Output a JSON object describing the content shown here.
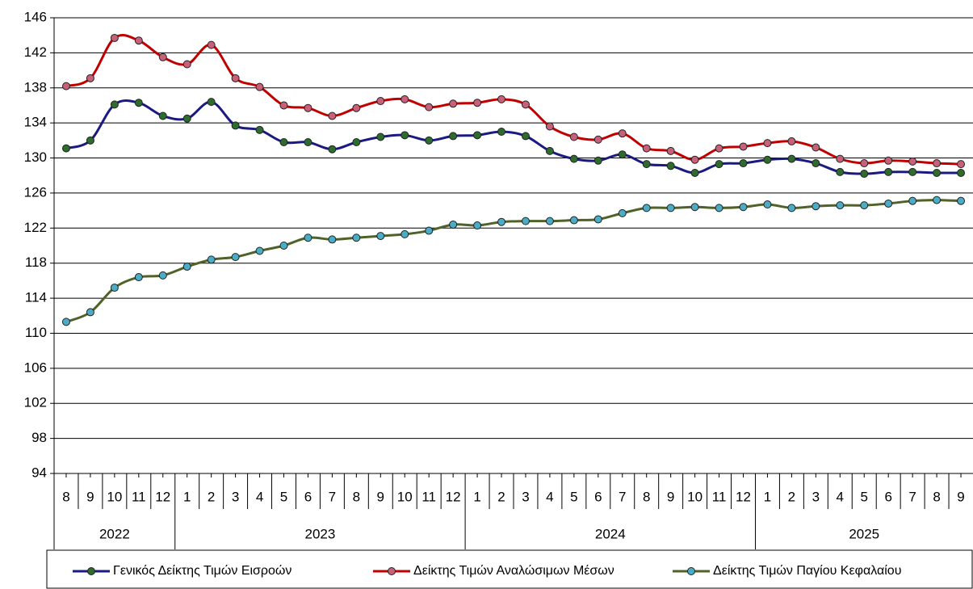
{
  "chart_data": {
    "type": "line",
    "categories": [
      "8",
      "9",
      "10",
      "11",
      "12",
      "1",
      "2",
      "3",
      "4",
      "5",
      "6",
      "7",
      "8",
      "9",
      "10",
      "11",
      "12",
      "1",
      "2",
      "3",
      "4",
      "5",
      "6",
      "7",
      "8",
      "9",
      "10",
      "11",
      "12",
      "1",
      "2",
      "3",
      "4",
      "5",
      "6",
      "7",
      "8",
      "9"
    ],
    "groups": [
      "2022",
      "2023",
      "2024",
      "2025"
    ],
    "series": [
      {
        "name": "Γενικός Δείκτης Τιμών Εισροών",
        "color": "#1a1a80",
        "marker_color": "#2e6b2e",
        "values": [
          131.1,
          132.0,
          136.1,
          136.3,
          134.8,
          134.5,
          136.4,
          133.7,
          133.2,
          131.8,
          131.8,
          131.0,
          131.8,
          132.4,
          132.6,
          132.0,
          132.5,
          132.6,
          133.0,
          132.5,
          130.8,
          129.9,
          129.7,
          130.4,
          129.3,
          129.1,
          128.3,
          129.3,
          129.4,
          129.8,
          129.9,
          129.4,
          128.4,
          128.2,
          128.4,
          128.4,
          128.3,
          128.3
        ]
      },
      {
        "name": "Δείκτης Τιμών Αναλώσιμων Μέσων",
        "color": "#c00000",
        "marker_color": "#c8607a",
        "values": [
          138.2,
          139.1,
          143.7,
          143.4,
          141.5,
          140.7,
          142.9,
          139.1,
          138.1,
          136.0,
          135.7,
          134.8,
          135.7,
          136.5,
          136.7,
          135.8,
          136.2,
          136.3,
          136.7,
          136.1,
          133.6,
          132.4,
          132.1,
          132.8,
          131.1,
          130.8,
          129.8,
          131.1,
          131.3,
          131.7,
          131.9,
          131.2,
          129.9,
          129.4,
          129.7,
          129.6,
          129.4,
          129.3
        ]
      },
      {
        "name": "Δείκτης Τιμών Παγίου Κεφαλαίου",
        "color": "#4f6228",
        "marker_color": "#4bacc6",
        "values": [
          111.3,
          112.4,
          115.2,
          116.4,
          116.6,
          117.6,
          118.4,
          118.7,
          119.4,
          120.0,
          120.9,
          120.7,
          120.9,
          121.1,
          121.3,
          121.7,
          122.4,
          122.3,
          122.7,
          122.8,
          122.8,
          122.9,
          123.0,
          123.7,
          124.3,
          124.3,
          124.4,
          124.3,
          124.4,
          124.7,
          124.3,
          124.5,
          124.6,
          124.6,
          124.8,
          125.1,
          125.2,
          125.1
        ]
      }
    ],
    "ylim": [
      94,
      146
    ],
    "yticks": [
      94,
      98,
      102,
      106,
      110,
      114,
      118,
      122,
      126,
      130,
      134,
      138,
      142,
      146
    ],
    "grid": true,
    "legend": "bottom"
  }
}
